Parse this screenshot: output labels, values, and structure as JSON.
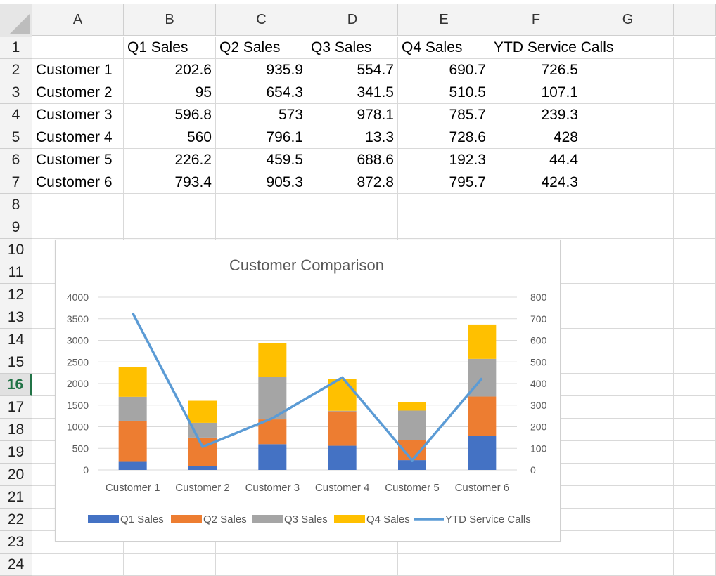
{
  "sheet": {
    "columns": [
      "A",
      "B",
      "C",
      "D",
      "E",
      "F",
      "G"
    ],
    "rows": [
      "1",
      "2",
      "3",
      "4",
      "5",
      "6",
      "7",
      "8",
      "9",
      "10",
      "11",
      "12",
      "13",
      "14",
      "15",
      "16",
      "17",
      "18",
      "19",
      "20",
      "21",
      "22",
      "23",
      "24"
    ],
    "selected_row": "16",
    "header_row": [
      "",
      "Q1 Sales",
      "Q2 Sales",
      "Q3 Sales",
      "Q4 Sales",
      "YTD Service Calls"
    ],
    "data_rows": [
      [
        "Customer 1",
        "202.6",
        "935.9",
        "554.7",
        "690.7",
        "726.5"
      ],
      [
        "Customer 2",
        "95",
        "654.3",
        "341.5",
        "510.5",
        "107.1"
      ],
      [
        "Customer 3",
        "596.8",
        "573",
        "978.1",
        "785.7",
        "239.3"
      ],
      [
        "Customer 4",
        "560",
        "796.1",
        "13.3",
        "728.6",
        "428"
      ],
      [
        "Customer 5",
        "226.2",
        "459.5",
        "688.6",
        "192.3",
        "44.4"
      ],
      [
        "Customer 6",
        "793.4",
        "905.3",
        "872.8",
        "795.7",
        "424.3"
      ]
    ]
  },
  "chart_data": {
    "type": "bar",
    "stacked": true,
    "title": "Customer Comparison",
    "categories": [
      "Customer 1",
      "Customer 2",
      "Customer 3",
      "Customer 4",
      "Customer 5",
      "Customer 6"
    ],
    "series": [
      {
        "name": "Q1 Sales",
        "values": [
          202.6,
          95,
          596.8,
          560,
          226.2,
          793.4
        ],
        "color": "#4472C4"
      },
      {
        "name": "Q2 Sales",
        "values": [
          935.9,
          654.3,
          573,
          796.1,
          459.5,
          905.3
        ],
        "color": "#ED7D31"
      },
      {
        "name": "Q3 Sales",
        "values": [
          554.7,
          341.5,
          978.1,
          13.3,
          688.6,
          872.8
        ],
        "color": "#A5A5A5"
      },
      {
        "name": "Q4 Sales",
        "values": [
          690.7,
          510.5,
          785.7,
          728.6,
          192.3,
          795.7
        ],
        "color": "#FFC000"
      }
    ],
    "line_series": {
      "name": "YTD Service Calls",
      "values": [
        726.5,
        107.1,
        239.3,
        428,
        44.4,
        424.3
      ],
      "color": "#5B9BD5",
      "axis": "secondary"
    },
    "ylim": [
      0,
      4000
    ],
    "yticks": [
      "0",
      "500",
      "1000",
      "1500",
      "2000",
      "2500",
      "3000",
      "3500",
      "4000"
    ],
    "y2lim": [
      0,
      800
    ],
    "y2ticks": [
      "0",
      "100",
      "200",
      "300",
      "400",
      "500",
      "600",
      "700",
      "800"
    ],
    "gridlines": true,
    "legend": "bottom"
  }
}
